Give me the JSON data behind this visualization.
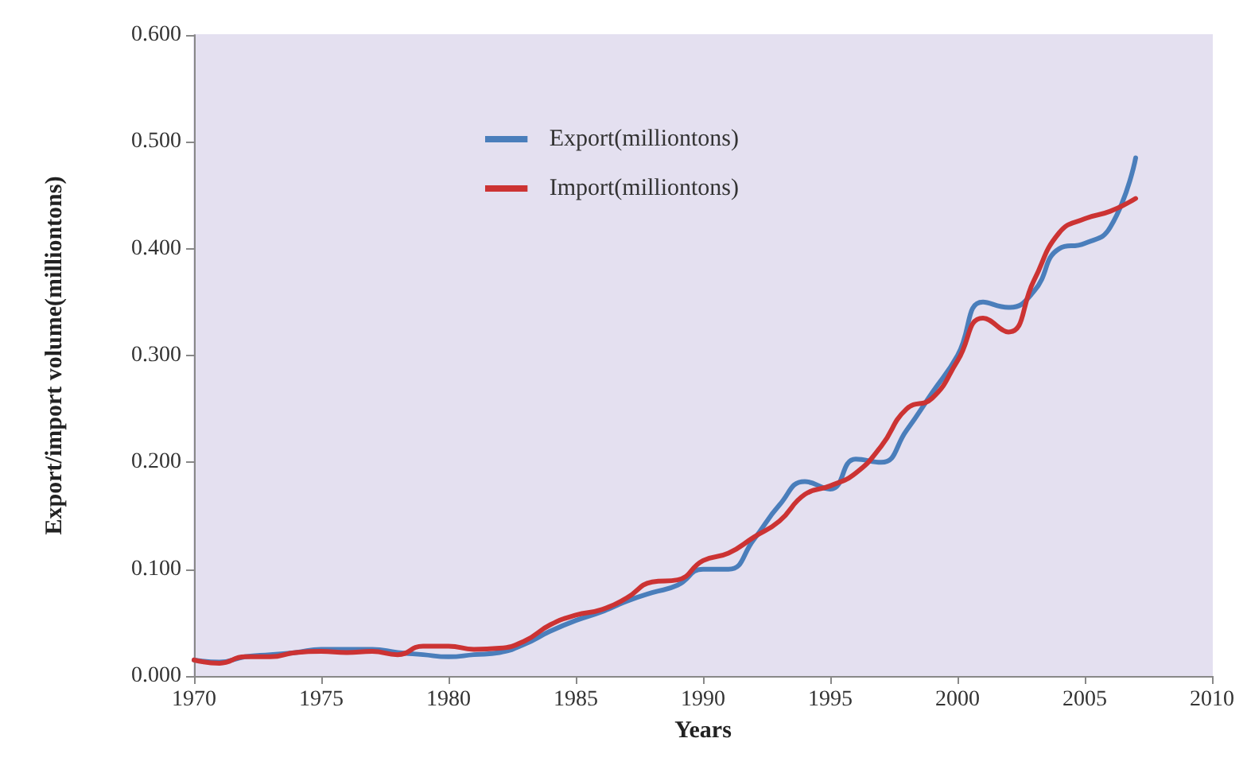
{
  "chart_data": {
    "type": "line",
    "xlabel": "Years",
    "ylabel": "Export/import volume(milliontons)",
    "x": [
      1970,
      1971,
      1972,
      1973,
      1974,
      1975,
      1976,
      1977,
      1978,
      1979,
      1980,
      1981,
      1982,
      1983,
      1984,
      1985,
      1986,
      1987,
      1988,
      1989,
      1990,
      1991,
      1992,
      1993,
      1994,
      1995,
      1996,
      1997,
      1998,
      1999,
      2000,
      2001,
      2002,
      2003,
      2004,
      2005,
      2006,
      2007
    ],
    "series": [
      {
        "name": "Export(milliontons)",
        "color": "#4a7ebb",
        "values": [
          0.015,
          0.013,
          0.018,
          0.02,
          0.022,
          0.025,
          0.025,
          0.025,
          0.022,
          0.02,
          0.018,
          0.02,
          0.022,
          0.03,
          0.042,
          0.052,
          0.06,
          0.07,
          0.078,
          0.085,
          0.1,
          0.1,
          0.128,
          0.16,
          0.182,
          0.175,
          0.203,
          0.2,
          0.23,
          0.265,
          0.3,
          0.35,
          0.345,
          0.36,
          0.4,
          0.405,
          0.42,
          0.485
        ]
      },
      {
        "name": "Import(milliontons)",
        "color": "#cc3333",
        "values": [
          0.015,
          0.012,
          0.018,
          0.018,
          0.022,
          0.023,
          0.022,
          0.023,
          0.02,
          0.028,
          0.028,
          0.025,
          0.026,
          0.033,
          0.048,
          0.057,
          0.062,
          0.073,
          0.088,
          0.09,
          0.108,
          0.115,
          0.13,
          0.145,
          0.17,
          0.178,
          0.19,
          0.215,
          0.25,
          0.26,
          0.295,
          0.335,
          0.322,
          0.37,
          0.415,
          0.428,
          0.435,
          0.447
        ]
      }
    ],
    "xlim": [
      1970,
      2010
    ],
    "xticks": [
      1970,
      1975,
      1980,
      1985,
      1990,
      1995,
      2000,
      2005,
      2010
    ],
    "ylim": [
      0,
      0.6
    ],
    "yticks": [
      {
        "value": 0,
        "label": "0.000"
      },
      {
        "value": 0.1,
        "label": "0.100"
      },
      {
        "value": 0.2,
        "label": "0.200"
      },
      {
        "value": 0.3,
        "label": "0.300"
      },
      {
        "value": 0.4,
        "label": "0.400"
      },
      {
        "value": 0.5,
        "label": "0.500"
      },
      {
        "value": 0.6,
        "label": "0.600"
      }
    ],
    "grid": false,
    "legend": "top",
    "marker": "none",
    "line_style": "solid"
  }
}
